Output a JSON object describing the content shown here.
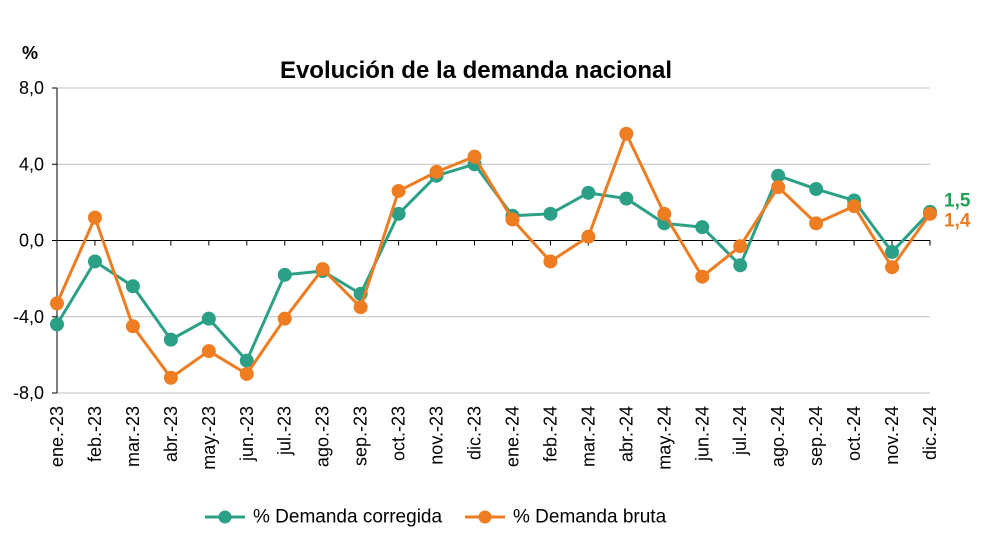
{
  "colors": {
    "gridline": "#BFBFBF",
    "axis": "#000000"
  },
  "chart_data": {
    "type": "line",
    "title": "Evolución de la demanda nacional",
    "ylabel": "%",
    "ylim": [
      -8,
      8
    ],
    "yticks": [
      8,
      4,
      0,
      -4,
      -8
    ],
    "ytick_labels": [
      "8,0",
      "4,0",
      "0,0",
      "-4,0",
      "-8,0"
    ],
    "grid": true,
    "legend_position": "bottom",
    "categories": [
      "ene.-23",
      "feb.-23",
      "mar.-23",
      "abr.-23",
      "may.-23",
      "jun.-23",
      "jul.-23",
      "ago.-23",
      "sep.-23",
      "oct.-23",
      "nov.-23",
      "dic.-23",
      "ene.-24",
      "feb.-24",
      "mar.-24",
      "abr.-24",
      "may.-24",
      "jun.-24",
      "jul.-24",
      "ago.-24",
      "sep.-24",
      "oct.-24",
      "nov.-24",
      "dic.-24"
    ],
    "series": [
      {
        "name": "% Demanda corregida",
        "color": "#2BA087",
        "values": [
          -4.4,
          -1.1,
          -2.4,
          -5.2,
          -4.1,
          -6.3,
          -1.8,
          -1.6,
          -2.8,
          1.4,
          3.4,
          4.0,
          1.3,
          1.4,
          2.5,
          2.2,
          0.9,
          0.7,
          -1.3,
          3.4,
          2.7,
          2.1,
          -0.6,
          1.5
        ],
        "end_label": "1,5",
        "end_label_color": "#1FA055"
      },
      {
        "name": "% Demanda bruta",
        "color": "#EE7D22",
        "values": [
          -3.3,
          1.2,
          -4.5,
          -7.2,
          -5.8,
          -7.0,
          -4.1,
          -1.5,
          -3.5,
          2.6,
          3.6,
          4.4,
          1.1,
          -1.1,
          0.2,
          5.6,
          1.4,
          -1.9,
          -0.3,
          2.8,
          0.9,
          1.8,
          -1.4,
          1.4
        ],
        "end_label": "1,4",
        "end_label_color": "#EE7D22"
      }
    ]
  }
}
